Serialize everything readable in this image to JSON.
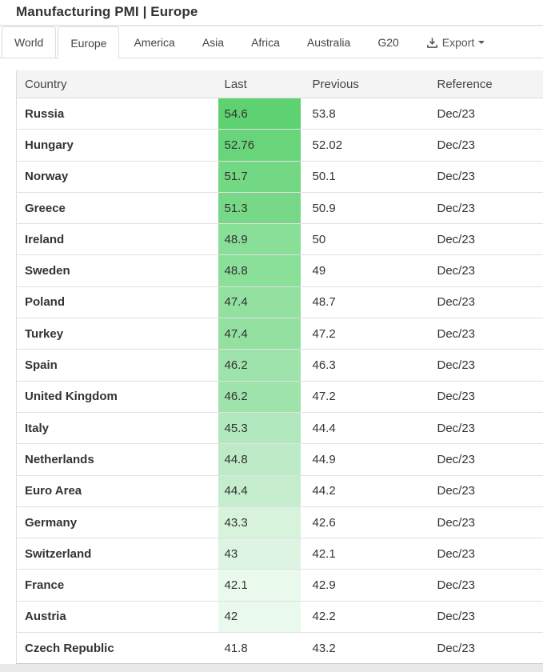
{
  "header": {
    "title": "Manufacturing PMI | Europe",
    "export_label": "Export"
  },
  "tabs": [
    {
      "label": "World",
      "boxed": true,
      "active": false
    },
    {
      "label": "Europe",
      "boxed": true,
      "active": true
    },
    {
      "label": "America",
      "boxed": false,
      "active": false
    },
    {
      "label": "Asia",
      "boxed": false,
      "active": false
    },
    {
      "label": "Africa",
      "boxed": false,
      "active": false
    },
    {
      "label": "Australia",
      "boxed": false,
      "active": false
    },
    {
      "label": "G20",
      "boxed": false,
      "active": false
    }
  ],
  "icons": {
    "export": "download-icon",
    "export_caret": "caret-down-icon"
  },
  "colors": {
    "heat_max": "#5ed271",
    "heat_min": "#ffffff",
    "border": "#dddddd",
    "header_bg": "#f4f4f4"
  },
  "table": {
    "columns": [
      "Country",
      "Last",
      "Previous",
      "Reference"
    ],
    "rows": [
      {
        "country": "Russia",
        "last": "54.6",
        "previous": "53.8",
        "reference": "Dec/23",
        "last_bg": "#5ed271"
      },
      {
        "country": "Hungary",
        "last": "52.76",
        "previous": "52.02",
        "reference": "Dec/23",
        "last_bg": "#69d57a"
      },
      {
        "country": "Norway",
        "last": "51.7",
        "previous": "50.1",
        "reference": "Dec/23",
        "last_bg": "#73d883"
      },
      {
        "country": "Greece",
        "last": "51.3",
        "previous": "50.9",
        "reference": "Dec/23",
        "last_bg": "#77d987"
      },
      {
        "country": "Ireland",
        "last": "48.9",
        "previous": "50",
        "reference": "Dec/23",
        "last_bg": "#89de98"
      },
      {
        "country": "Sweden",
        "last": "48.8",
        "previous": "49",
        "reference": "Dec/23",
        "last_bg": "#8adf99"
      },
      {
        "country": "Poland",
        "last": "47.4",
        "previous": "48.7",
        "reference": "Dec/23",
        "last_bg": "#93e0a1"
      },
      {
        "country": "Turkey",
        "last": "47.4",
        "previous": "47.2",
        "reference": "Dec/23",
        "last_bg": "#93e0a1"
      },
      {
        "country": "Spain",
        "last": "46.2",
        "previous": "46.3",
        "reference": "Dec/23",
        "last_bg": "#9de3ab"
      },
      {
        "country": "United Kingdom",
        "last": "46.2",
        "previous": "47.2",
        "reference": "Dec/23",
        "last_bg": "#9de3ab"
      },
      {
        "country": "Italy",
        "last": "45.3",
        "previous": "44.4",
        "reference": "Dec/23",
        "last_bg": "#b2e8bd"
      },
      {
        "country": "Netherlands",
        "last": "44.8",
        "previous": "44.9",
        "reference": "Dec/23",
        "last_bg": "#bdeac7"
      },
      {
        "country": "Euro Area",
        "last": "44.4",
        "previous": "44.2",
        "reference": "Dec/23",
        "last_bg": "#c4eccd"
      },
      {
        "country": "Germany",
        "last": "43.3",
        "previous": "42.6",
        "reference": "Dec/23",
        "last_bg": "#d7f3dc"
      },
      {
        "country": "Switzerland",
        "last": "43",
        "previous": "42.1",
        "reference": "Dec/23",
        "last_bg": "#dcf4e1"
      },
      {
        "country": "France",
        "last": "42.1",
        "previous": "42.9",
        "reference": "Dec/23",
        "last_bg": "#e9f9ec"
      },
      {
        "country": "Austria",
        "last": "42",
        "previous": "42.2",
        "reference": "Dec/23",
        "last_bg": "#eaf9ed"
      },
      {
        "country": "Czech Republic",
        "last": "41.8",
        "previous": "43.2",
        "reference": "Dec/23",
        "last_bg": "#ffffff"
      }
    ]
  }
}
